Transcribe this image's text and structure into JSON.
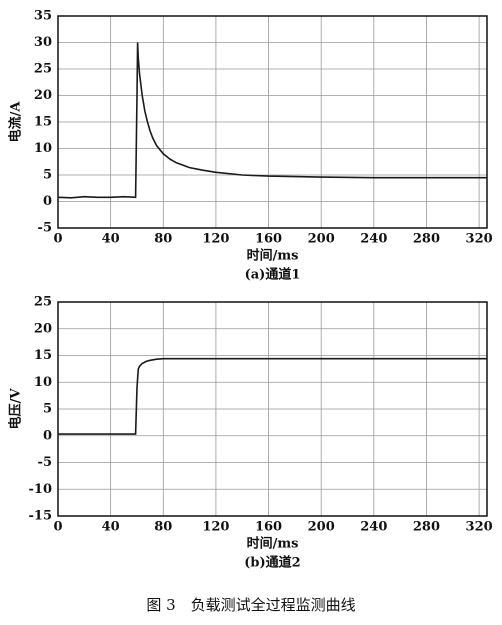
{
  "figure_caption": "图 3　负载测试全过程监测曲线",
  "chart_data": [
    {
      "type": "line",
      "subtitle": "(a)通道1",
      "x_label": "时间/ms",
      "y_label": "电流/A",
      "x": [
        0,
        10,
        20,
        30,
        40,
        50,
        59,
        60,
        60.5,
        61,
        62,
        64,
        66,
        68,
        70,
        72,
        75,
        80,
        85,
        90,
        100,
        110,
        120,
        140,
        160,
        180,
        200,
        240,
        280,
        326
      ],
      "values": [
        0.8,
        0.7,
        0.9,
        0.8,
        0.8,
        0.9,
        0.8,
        20,
        30,
        27,
        24,
        20,
        17,
        15,
        13.3,
        12,
        10.5,
        9,
        8,
        7.3,
        6.4,
        5.9,
        5.5,
        5,
        4.8,
        4.7,
        4.6,
        4.5,
        4.5,
        4.5
      ],
      "color": "#1a1a1a",
      "xlim": [
        0,
        326
      ],
      "ylim": [
        -5,
        35
      ],
      "xticks": [
        0,
        40,
        80,
        120,
        160,
        200,
        240,
        280,
        320
      ],
      "yticks": [
        -5,
        0,
        5,
        10,
        15,
        20,
        25,
        30,
        35
      ],
      "grid": true
    },
    {
      "type": "line",
      "subtitle": "(b)通道2",
      "x_label": "时间/ms",
      "y_label": "电压/V",
      "x": [
        0,
        10,
        20,
        30,
        40,
        50,
        59,
        60,
        61,
        62,
        64,
        67,
        70,
        75,
        80,
        90,
        100,
        120,
        160,
        200,
        240,
        280,
        326
      ],
      "values": [
        0.3,
        0.3,
        0.3,
        0.3,
        0.3,
        0.3,
        0.3,
        9,
        12.5,
        13,
        13.5,
        13.9,
        14.1,
        14.3,
        14.4,
        14.4,
        14.4,
        14.4,
        14.4,
        14.4,
        14.4,
        14.4,
        14.4
      ],
      "color": "#1a1a1a",
      "xlim": [
        0,
        326
      ],
      "ylim": [
        -15,
        25
      ],
      "xticks": [
        0,
        40,
        80,
        120,
        160,
        200,
        240,
        280,
        320
      ],
      "yticks": [
        -15,
        -10,
        -5,
        0,
        5,
        10,
        15,
        20,
        25
      ],
      "grid": true
    }
  ]
}
